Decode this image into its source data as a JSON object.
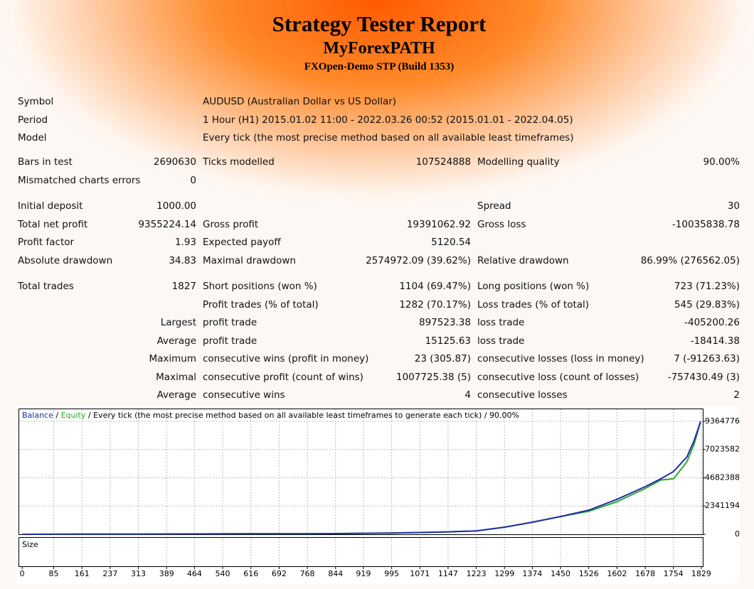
{
  "header": {
    "title": "Strategy Tester Report",
    "subtitle": "MyForexPATH",
    "server": "FXOpen-Demo STP (Build 1353)"
  },
  "table": {
    "rows": [
      [
        "Symbol",
        "AUDUSD (Australian Dollar vs US Dollar)"
      ],
      [
        "Period",
        "1 Hour (H1) 2015.01.02 11:00 - 2022.03.26 00:52 (2015.01.01 - 2022.04.05)"
      ],
      [
        "Model",
        "Every tick (the most precise method based on all available least timeframes)"
      ],
      [
        "Bars in test",
        "2690630",
        "Ticks modelled",
        "107524888",
        "Modelling quality",
        "90.00%"
      ],
      [
        "Mismatched charts errors",
        "0",
        null,
        null,
        null,
        null
      ],
      [
        "Initial deposit",
        "1000.00",
        null,
        null,
        "Spread",
        "30"
      ],
      [
        "Total net profit",
        "9355224.14",
        "Gross profit",
        "19391062.92",
        "Gross loss",
        "-10035838.78"
      ],
      [
        "Profit factor",
        "1.93",
        "Expected payoff",
        "5120.54",
        null,
        null
      ],
      [
        "Absolute drawdown",
        "34.83",
        "Maximal drawdown",
        "2574972.09 (39.62%)",
        "Relative drawdown",
        "86.99% (276562.05)"
      ],
      [
        "Total trades",
        "1827",
        "Short positions (won %)",
        "1104 (69.47%)",
        "Long positions (won %)",
        "723 (71.23%)"
      ],
      [
        null,
        null,
        "Profit trades (% of total)",
        "1282 (70.17%)",
        "Loss trades (% of total)",
        "545 (29.83%)"
      ],
      [
        null,
        "Largest",
        "profit trade",
        "897523.38",
        "loss trade",
        "-405200.26"
      ],
      [
        null,
        "Average",
        "profit trade",
        "15125.63",
        "loss trade",
        "-18414.38"
      ],
      [
        null,
        "Maximum",
        "consecutive wins (profit in money)",
        "23 (305.87)",
        "consecutive losses (loss in money)",
        "7 (-91263.63)"
      ],
      [
        null,
        "Maximal",
        "consecutive profit (count of wins)",
        "1007725.38 (5)",
        "consecutive loss (count of losses)",
        "-757430.49 (3)"
      ],
      [
        null,
        "Average",
        "consecutive wins",
        "4",
        "consecutive losses",
        "2"
      ]
    ]
  },
  "chart_data": {
    "type": "line",
    "legend": {
      "balance": "Balance",
      "separator": "/",
      "equity": "Equity",
      "description": "Every tick (the most precise method based on all available least timeframes to generate each tick) / 90.00%"
    },
    "size_label": "Size",
    "x": [
      0,
      85,
      161,
      237,
      313,
      389,
      464,
      540,
      616,
      692,
      768,
      844,
      919,
      995,
      1071,
      1147,
      1223,
      1299,
      1374,
      1450,
      1526,
      1602,
      1678,
      1720,
      1754,
      1790,
      1810,
      1827
    ],
    "series": [
      {
        "name": "Balance",
        "color": "#1f2fa8",
        "values": [
          1000,
          5000,
          10000,
          15000,
          20000,
          25000,
          30000,
          35000,
          40000,
          45000,
          50000,
          60000,
          80000,
          100000,
          150000,
          200000,
          280000,
          590000,
          1000000,
          1470000,
          2000000,
          2900000,
          3950000,
          4600000,
          5200000,
          6400000,
          7800000,
          9355224
        ]
      },
      {
        "name": "Equity",
        "color": "#2ea82e",
        "values": [
          1000,
          5000,
          10000,
          15000,
          20000,
          25000,
          30000,
          35000,
          40000,
          45000,
          50000,
          60000,
          80000,
          100000,
          150000,
          200000,
          280000,
          590000,
          1000000,
          1470000,
          1900000,
          2700000,
          3800000,
          4500000,
          4600000,
          6000000,
          7500000,
          9355224
        ]
      }
    ],
    "xlim": [
      -8,
      1833
    ],
    "ylim": [
      0,
      10366000
    ],
    "xticks": [
      0,
      85,
      161,
      237,
      313,
      389,
      464,
      540,
      616,
      692,
      768,
      844,
      919,
      995,
      1071,
      1147,
      1223,
      1299,
      1374,
      1450,
      1526,
      1602,
      1678,
      1754,
      1829
    ],
    "yticks": [
      0,
      2341194,
      4682388,
      7023582,
      9364776
    ],
    "grid": true
  }
}
